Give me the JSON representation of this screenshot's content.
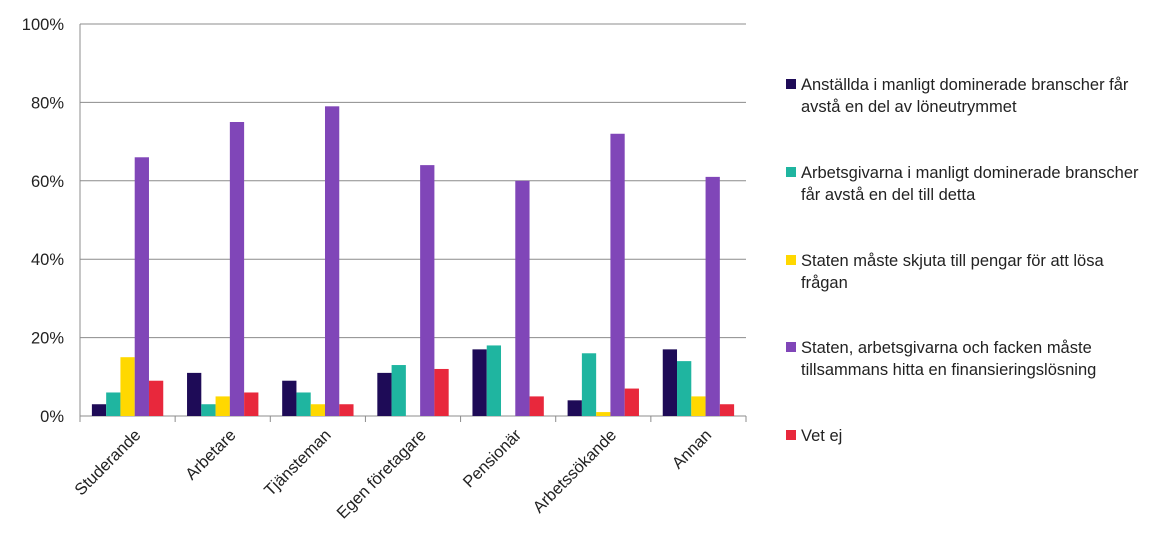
{
  "chart_data": {
    "type": "bar",
    "categories": [
      "Studerande",
      "Arbetare",
      "Tjänsteman",
      "Egen företagare",
      "Pensionär",
      "Arbetssökande",
      "Annan"
    ],
    "y_ticks": [
      "0%",
      "20%",
      "40%",
      "60%",
      "80%",
      "100%"
    ],
    "ylim": [
      0,
      100
    ],
    "grid": true,
    "legend_position": "right",
    "series": [
      {
        "name": "Anställda i manligt dominerade branscher får avstå en del av löneutrymmet",
        "color": "#1e0b57",
        "values": [
          3,
          11,
          9,
          11,
          17,
          4,
          17
        ]
      },
      {
        "name": "Arbetsgivarna i manligt dominerade branscher får avstå en del till detta",
        "color": "#1fb5a0",
        "values": [
          6,
          3,
          6,
          13,
          18,
          16,
          14
        ]
      },
      {
        "name": "Staten måste skjuta till pengar för att lösa frågan",
        "color": "#ffd800",
        "values": [
          15,
          5,
          3,
          0,
          0,
          1,
          5
        ]
      },
      {
        "name": "Staten, arbetsgivarna och facken måste tillsammans hitta en finansieringslösning",
        "color": "#8046b8",
        "values": [
          66,
          75,
          79,
          64,
          60,
          72,
          61
        ]
      },
      {
        "name": "Vet ej",
        "color": "#e8283c",
        "values": [
          9,
          6,
          3,
          12,
          5,
          7,
          3
        ]
      }
    ]
  }
}
